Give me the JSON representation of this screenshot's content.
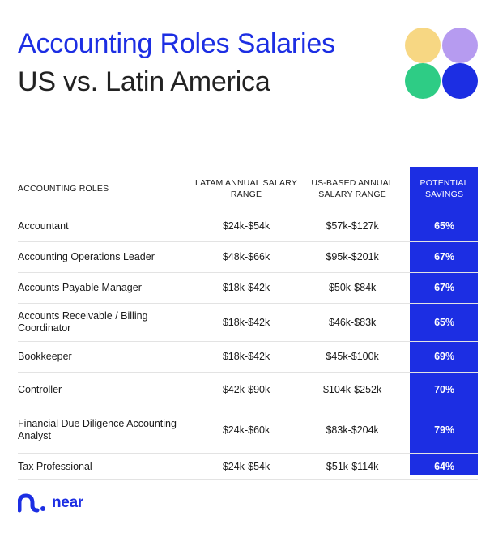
{
  "header": {
    "title_line1": "Accounting Roles Salaries",
    "title_line2": "US vs. Latin America"
  },
  "colors": {
    "accent": "#1c2ee3",
    "dot_yellow": "#f7d783",
    "dot_purple": "#b69bf0",
    "dot_green": "#2ecc85",
    "dot_blue": "#1c2ee3"
  },
  "table": {
    "columns": [
      "ACCOUNTING ROLES",
      "LATAM ANNUAL SALARY RANGE",
      "US-BASED ANNUAL SALARY RANGE",
      "POTENTIAL SAVINGS"
    ],
    "rows": [
      {
        "role": "Accountant",
        "latam": "$24k-$54k",
        "us": "$57k-$127k",
        "savings": "65%"
      },
      {
        "role": "Accounting Operations Leader",
        "latam": "$48k-$66k",
        "us": "$95k-$201k",
        "savings": "67%"
      },
      {
        "role": "Accounts Payable Manager",
        "latam": "$18k-$42k",
        "us": "$50k-$84k",
        "savings": "67%"
      },
      {
        "role": "Accounts Receivable / Billing Coordinator",
        "latam": "$18k-$42k",
        "us": "$46k-$83k",
        "savings": "65%"
      },
      {
        "role": "Bookkeeper",
        "latam": "$18k-$42k",
        "us": "$45k-$100k",
        "savings": "69%"
      },
      {
        "role": "Controller",
        "latam": "$42k-$90k",
        "us": "$104k-$252k",
        "savings": "70%"
      },
      {
        "role": "Financial Due Diligence Accounting Analyst",
        "latam": "$24k-$60k",
        "us": "$83k-$204k",
        "savings": "79%"
      },
      {
        "role": "Tax Professional",
        "latam": "$24k-$54k",
        "us": "$51k-$114k",
        "savings": "64%"
      }
    ]
  },
  "logo": {
    "text": "near",
    "icon": "near-logo-icon"
  }
}
